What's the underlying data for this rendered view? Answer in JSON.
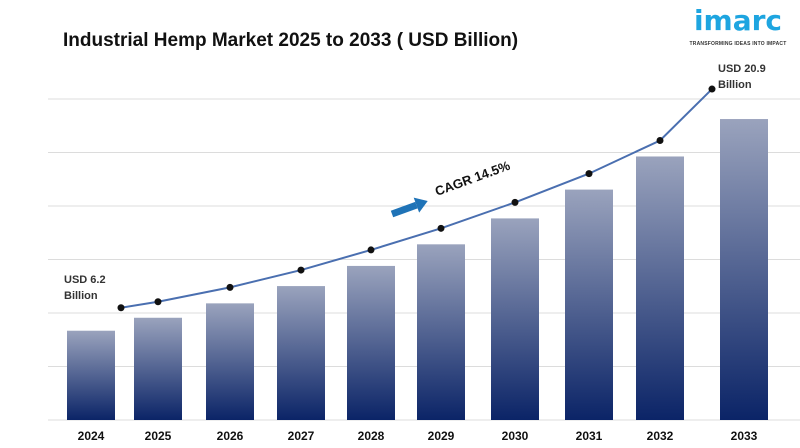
{
  "logo": {
    "word": "imarc",
    "tagline": "TRANSFORMING IDEAS INTO IMPACT"
  },
  "chart_data": {
    "type": "bar",
    "title": "Industrial Hemp Market 2025 to 2033 ( USD Billion)",
    "categories": [
      "2024",
      "2025",
      "2026",
      "2027",
      "2028",
      "2029",
      "2030",
      "2031",
      "2032",
      "2033"
    ],
    "values": [
      6.2,
      7.1,
      8.1,
      9.3,
      10.7,
      12.2,
      14.0,
      16.0,
      18.3,
      20.9
    ],
    "trend_line": true,
    "grid": true,
    "annotations": {
      "start_label": [
        "USD 6.2",
        "Billion"
      ],
      "end_label": [
        "USD 20.9",
        "Billion"
      ],
      "cagr": "CAGR 14.5%"
    },
    "colors": {
      "bar_top": "#9aa3bd",
      "bar_bottom": "#0b2467",
      "line": "#4a6fb0",
      "arrow": "#1f73b7"
    }
  }
}
